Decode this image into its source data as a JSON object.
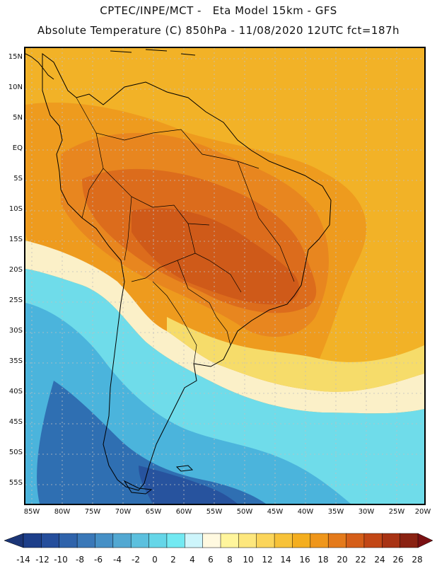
{
  "header": {
    "line1": "CPTEC/INPE/MCT -   Eta Model 15km - GFS",
    "line2": "Absolute Temperature (C) 850hPa - 11/08/2020 12UTC fct=187h"
  },
  "axes": {
    "lat_labels": [
      "15N",
      "10N",
      "5N",
      "EQ",
      "5S",
      "10S",
      "15S",
      "20S",
      "25S",
      "30S",
      "35S",
      "40S",
      "45S",
      "50S",
      "55S"
    ],
    "lon_labels": [
      "85W",
      "80W",
      "75W",
      "70W",
      "65W",
      "60W",
      "55W",
      "50W",
      "45W",
      "40W",
      "35W",
      "30W",
      "25W",
      "20W"
    ]
  },
  "colorbar": {
    "labels": [
      "-14",
      "-12",
      "-10",
      "-8",
      "-6",
      "-4",
      "-2",
      "0",
      "2",
      "4",
      "6",
      "8",
      "10",
      "12",
      "14",
      "16",
      "18",
      "20",
      "22",
      "24",
      "26",
      "28"
    ],
    "colors": [
      "#1d3f8a",
      "#254e9c",
      "#2f63ab",
      "#3a78b8",
      "#4690c6",
      "#52a8d2",
      "#5cc0de",
      "#65d6e8",
      "#72e9f2",
      "#cdf5fb",
      "#fff9e0",
      "#fff59c",
      "#fde77d",
      "#fbd55a",
      "#f7c239",
      "#f4ae1f",
      "#ef961b",
      "#e47a1b",
      "#d55e19",
      "#c24716",
      "#a83314",
      "#8a2212"
    ],
    "under_color": "#1b3576",
    "over_color": "#7a1012"
  },
  "palette": {
    "north_warm": "#f2b227",
    "tropical_orange": "#ee9b1e",
    "continental_orange": "#e8861f",
    "hot_core": "#dc6c1c",
    "hot_center": "#cf5a19",
    "cream": "#fbf0c8",
    "pale_yellow": "#f6dc6a",
    "cool_cyan": "#6fdcea",
    "mid_blue": "#4bb4dc",
    "deep_blue": "#2f6fb2",
    "darkest_blue": "#27539e",
    "grid": "#c0c0c0",
    "coast": "#000000"
  }
}
